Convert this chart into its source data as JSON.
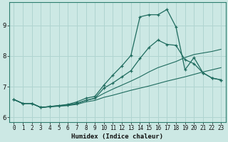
{
  "xlabel": "Humidex (Indice chaleur)",
  "bg_color": "#cce8e4",
  "grid_color": "#b0d4d0",
  "line_color": "#1e6b5e",
  "xlim": [
    -0.5,
    23.5
  ],
  "ylim": [
    5.85,
    9.75
  ],
  "xticks": [
    0,
    1,
    2,
    3,
    4,
    5,
    6,
    7,
    8,
    9,
    10,
    11,
    12,
    13,
    14,
    15,
    16,
    17,
    18,
    19,
    20,
    21,
    22,
    23
  ],
  "yticks": [
    6,
    7,
    8,
    9
  ],
  "line1_x": [
    0,
    1,
    2,
    3,
    4,
    5,
    6,
    7,
    8,
    9,
    10,
    11,
    12,
    13,
    14,
    15,
    16,
    17,
    18,
    19,
    20,
    21,
    22,
    23
  ],
  "line1_y": [
    6.58,
    6.45,
    6.45,
    6.32,
    6.35,
    6.38,
    6.42,
    6.5,
    6.62,
    6.68,
    7.05,
    7.38,
    7.68,
    8.02,
    9.28,
    9.35,
    9.35,
    9.52,
    8.95,
    7.55,
    7.95,
    7.45,
    7.28,
    7.22
  ],
  "line2_x": [
    0,
    1,
    2,
    3,
    4,
    5,
    6,
    7,
    8,
    9,
    10,
    11,
    12,
    13,
    14,
    15,
    16,
    17,
    18,
    19,
    20,
    21,
    22,
    23
  ],
  "line2_y": [
    6.58,
    6.45,
    6.45,
    6.32,
    6.35,
    6.38,
    6.4,
    6.45,
    6.55,
    6.62,
    6.95,
    7.12,
    7.32,
    7.52,
    7.92,
    8.28,
    8.52,
    8.38,
    8.35,
    7.88,
    7.75,
    7.45,
    7.28,
    7.22
  ],
  "line3_x": [
    0,
    1,
    2,
    3,
    4,
    5,
    6,
    7,
    8,
    9,
    10,
    11,
    12,
    13,
    14,
    15,
    16,
    17,
    18,
    19,
    20,
    21,
    22,
    23
  ],
  "line3_y": [
    6.58,
    6.45,
    6.45,
    6.32,
    6.35,
    6.37,
    6.4,
    6.45,
    6.55,
    6.62,
    6.78,
    6.92,
    7.05,
    7.18,
    7.32,
    7.48,
    7.62,
    7.72,
    7.82,
    7.95,
    8.05,
    8.1,
    8.15,
    8.22
  ],
  "line4_x": [
    0,
    1,
    2,
    3,
    4,
    5,
    6,
    7,
    8,
    9,
    10,
    11,
    12,
    13,
    14,
    15,
    16,
    17,
    18,
    19,
    20,
    21,
    22,
    23
  ],
  "line4_y": [
    6.58,
    6.45,
    6.45,
    6.32,
    6.34,
    6.36,
    6.38,
    6.42,
    6.5,
    6.55,
    6.65,
    6.72,
    6.8,
    6.88,
    6.95,
    7.02,
    7.1,
    7.18,
    7.25,
    7.32,
    7.4,
    7.48,
    7.55,
    7.62
  ]
}
